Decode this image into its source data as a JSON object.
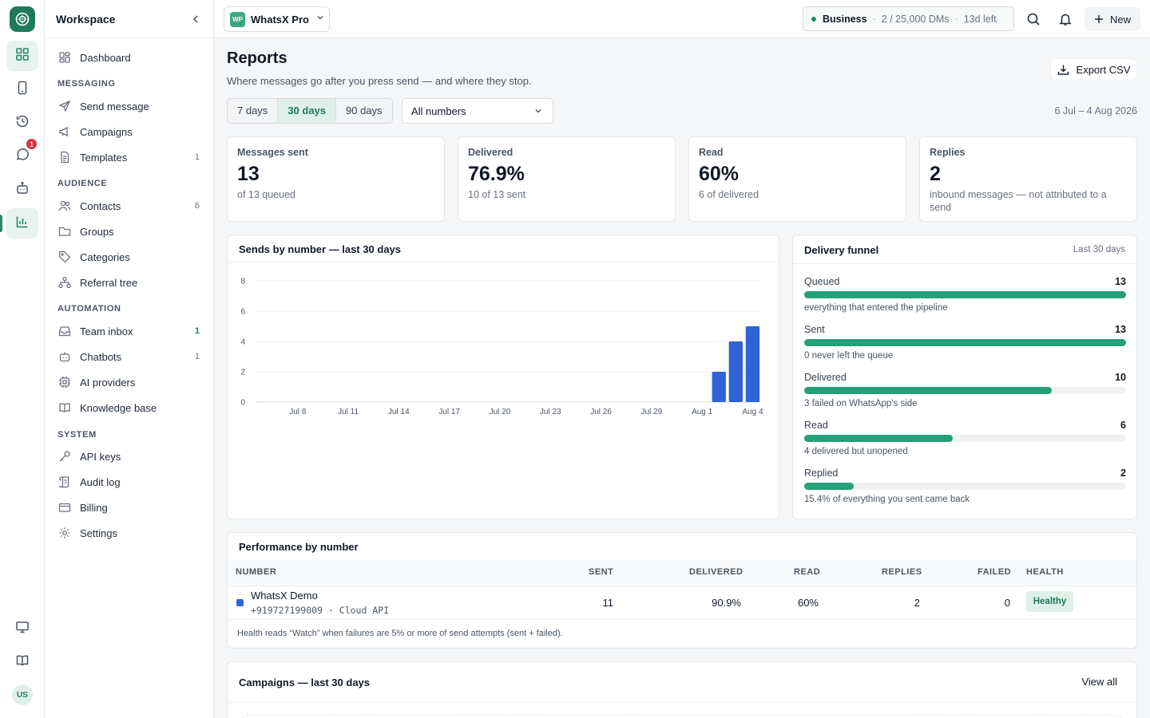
{
  "workspace": {
    "title": "Workspace",
    "switcher_logo": "WP",
    "switcher_name": "WhatsX Pro"
  },
  "rail": {
    "chat_badge": "1",
    "avatar": "US"
  },
  "sidebar": {
    "dashboard": "Dashboard",
    "sections": {
      "messaging": "MESSAGING",
      "audience": "AUDIENCE",
      "automation": "AUTOMATION",
      "system": "SYSTEM"
    },
    "messaging": [
      {
        "label": "Send message",
        "count": ""
      },
      {
        "label": "Campaigns",
        "count": ""
      },
      {
        "label": "Templates",
        "count": "1"
      }
    ],
    "audience": [
      {
        "label": "Contacts",
        "count": "6"
      },
      {
        "label": "Groups",
        "count": ""
      },
      {
        "label": "Categories",
        "count": ""
      },
      {
        "label": "Referral tree",
        "count": ""
      }
    ],
    "automation": [
      {
        "label": "Team inbox",
        "count": "1"
      },
      {
        "label": "Chatbots",
        "count": "1"
      },
      {
        "label": "AI providers",
        "count": ""
      },
      {
        "label": "Knowledge base",
        "count": ""
      }
    ],
    "system": [
      {
        "label": "API keys"
      },
      {
        "label": "Audit log"
      },
      {
        "label": "Billing"
      },
      {
        "label": "Settings"
      }
    ]
  },
  "topbar": {
    "plan_tier": "Business",
    "plan_usage": "2 / 25,000 DMs",
    "plan_left": "13d left",
    "new_label": "New"
  },
  "page": {
    "title": "Reports",
    "subtitle": "Where messages go after you press send — and where they stop.",
    "export_label": "Export CSV",
    "ranges": [
      "7 days",
      "30 days",
      "90 days"
    ],
    "active_range": "30 days",
    "number_filter": "All numbers",
    "date_range": "6 Jul – 4 Aug 2026"
  },
  "stats": [
    {
      "label": "Messages sent",
      "value": "13",
      "sub": "of 13 queued"
    },
    {
      "label": "Delivered",
      "value": "76.9%",
      "sub": "10 of 13 sent"
    },
    {
      "label": "Read",
      "value": "60%",
      "sub": "6 of delivered"
    },
    {
      "label": "Replies",
      "value": "2",
      "sub": "inbound messages — not attributed to a send"
    }
  ],
  "sends_chart": {
    "title": "Sends by number — last 30 days"
  },
  "chart_data": {
    "type": "bar",
    "title": "Sends by number — last 30 days",
    "xlabel": "",
    "ylabel": "",
    "ylim": [
      0,
      8
    ],
    "yticks": [
      0,
      2,
      4,
      6,
      8
    ],
    "grid": true,
    "color": "#2f63d6",
    "x_tick_labels": [
      "Jul 8",
      "Jul 11",
      "Jul 14",
      "Jul 17",
      "Jul 20",
      "Jul 23",
      "Jul 26",
      "Jul 29",
      "Aug 1",
      "Aug 4"
    ],
    "categories": [
      "Jul 6",
      "Jul 7",
      "Jul 8",
      "Jul 9",
      "Jul 10",
      "Jul 11",
      "Jul 12",
      "Jul 13",
      "Jul 14",
      "Jul 15",
      "Jul 16",
      "Jul 17",
      "Jul 18",
      "Jul 19",
      "Jul 20",
      "Jul 21",
      "Jul 22",
      "Jul 23",
      "Jul 24",
      "Jul 25",
      "Jul 26",
      "Jul 27",
      "Jul 28",
      "Jul 29",
      "Jul 30",
      "Jul 31",
      "Aug 1",
      "Aug 2",
      "Aug 3",
      "Aug 4"
    ],
    "values": [
      0,
      0,
      0,
      0,
      0,
      0,
      0,
      0,
      0,
      0,
      0,
      0,
      0,
      0,
      0,
      0,
      0,
      0,
      0,
      0,
      0,
      0,
      0,
      0,
      0,
      0,
      0,
      2,
      4,
      5
    ]
  },
  "funnel": {
    "title": "Delivery funnel",
    "period": "Last 30 days",
    "max": 13,
    "steps": [
      {
        "name": "Queued",
        "count": 13,
        "note": "everything that entered the pipeline"
      },
      {
        "name": "Sent",
        "count": 13,
        "note": "0 never left the queue"
      },
      {
        "name": "Delivered",
        "count": 10,
        "note": "3 failed on WhatsApp's side"
      },
      {
        "name": "Read",
        "count": 6,
        "note": "4 delivered but unopened"
      },
      {
        "name": "Replied",
        "count": 2,
        "note": "15.4% of everything you sent came back"
      }
    ],
    "color": "#23a07a"
  },
  "performance": {
    "title": "Performance by number",
    "columns": [
      "NUMBER",
      "SENT",
      "DELIVERED",
      "READ",
      "REPLIES",
      "FAILED",
      "HEALTH"
    ],
    "rows": [
      {
        "name": "WhatsX Demo",
        "phone": "+919727199009 · Cloud API",
        "color": "#2f63d6",
        "sent": "11",
        "delivered": "90.9%",
        "read": "60%",
        "replies": "2",
        "failed": "0",
        "health": "Healthy"
      }
    ],
    "footnote": "Health reads “Watch” when failures are 5% or more of send attempts (sent + failed)."
  },
  "campaigns": {
    "title": "Campaigns — last 30 days",
    "view_all": "View all"
  },
  "colors": {
    "brand": "#1f7a5c",
    "accent": "#1e8a66",
    "bar": "#2f63d6"
  },
  "icons": [
    "logo-icon",
    "grid-icon",
    "phone-icon",
    "history-icon",
    "chat-icon",
    "bot-icon",
    "chart-icon",
    "monitor-icon",
    "book-icon",
    "chevron-left-icon",
    "chevron-down-icon",
    "search-icon",
    "bell-icon",
    "plus-icon",
    "download-icon"
  ]
}
